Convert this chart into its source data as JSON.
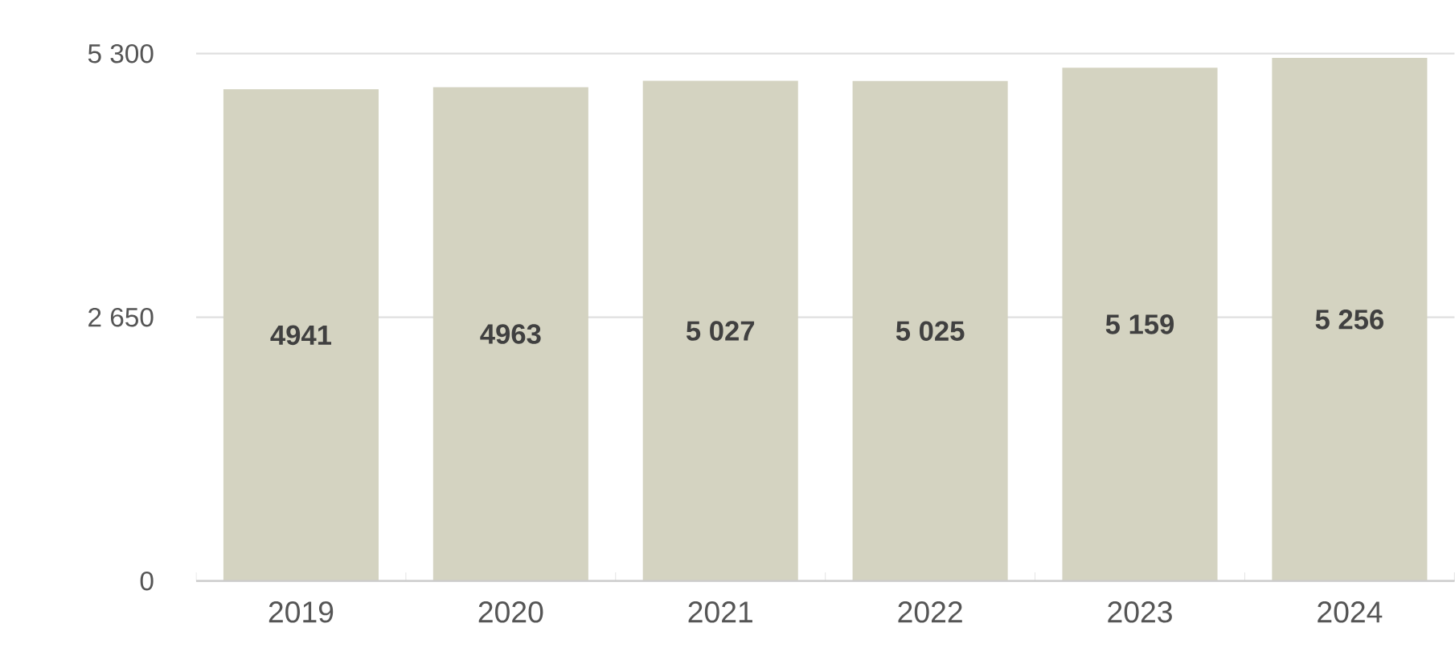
{
  "chart_data": {
    "type": "bar",
    "categories": [
      "2019",
      "2020",
      "2021",
      "2022",
      "2023",
      "2024"
    ],
    "values": [
      4941,
      4963,
      5027,
      5025,
      5159,
      5256
    ],
    "value_labels": [
      "4941",
      "4963",
      "5 027",
      "5 025",
      "5 159",
      "5 256"
    ],
    "color": "#d4d3c1",
    "ylim": [
      0,
      5300
    ],
    "yticks": [
      0,
      {
        "value": 2650,
        "label": "2 650"
      },
      {
        "value": 5300,
        "label": "5 300"
      }
    ],
    "grid": "y"
  }
}
